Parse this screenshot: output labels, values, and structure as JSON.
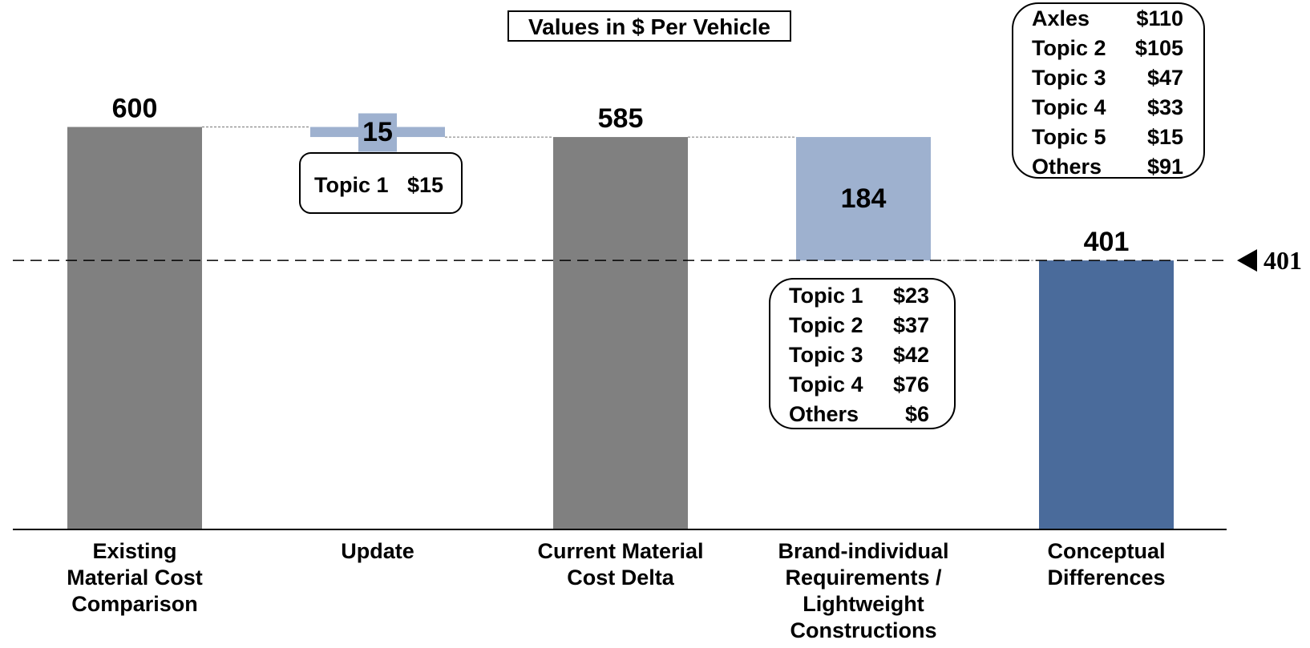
{
  "chart_data": {
    "type": "bar",
    "subtype": "waterfall",
    "title": "Values in $ Per Vehicle",
    "categories": [
      [
        "Existing",
        "Material Cost",
        "Comparison"
      ],
      [
        "Update"
      ],
      [
        "Current Material",
        "Cost Delta"
      ],
      [
        "Brand-individual",
        "Requirements /",
        "Lightweight",
        "Constructions"
      ],
      [
        "Conceptual",
        "Differences"
      ]
    ],
    "bars": [
      {
        "kind": "total",
        "base": 0,
        "top": 600,
        "label": "600",
        "color": "#808080"
      },
      {
        "kind": "delta",
        "base": 585,
        "top": 600,
        "label": "15",
        "color": "#9eb1cf"
      },
      {
        "kind": "total",
        "base": 0,
        "top": 585,
        "label": "585",
        "color": "#808080"
      },
      {
        "kind": "delta",
        "base": 401,
        "top": 585,
        "label": "184",
        "color": "#9eb1cf"
      },
      {
        "kind": "total",
        "base": 0,
        "top": 401,
        "label": "401",
        "color": "#4a6b9b"
      }
    ],
    "ylim": [
      0,
      640
    ],
    "reference_line": {
      "value": 401,
      "label": "401"
    },
    "callouts": [
      {
        "name": "update-topics",
        "rows": [
          [
            "Topic 1",
            "$15"
          ]
        ]
      },
      {
        "name": "brand-topics",
        "rows": [
          [
            "Topic 1",
            "$23"
          ],
          [
            "Topic 2",
            "$37"
          ],
          [
            "Topic 3",
            "$42"
          ],
          [
            "Topic 4",
            "$76"
          ],
          [
            "Others",
            "$6"
          ]
        ]
      },
      {
        "name": "conceptual-topics",
        "rows": [
          [
            "Axles",
            "$110"
          ],
          [
            "Topic 2",
            "$105"
          ],
          [
            "Topic 3",
            "$47"
          ],
          [
            "Topic 4",
            "$33"
          ],
          [
            "Topic 5",
            "$15"
          ],
          [
            "Others",
            "$91"
          ]
        ]
      }
    ],
    "grid": false,
    "legend": "none"
  }
}
